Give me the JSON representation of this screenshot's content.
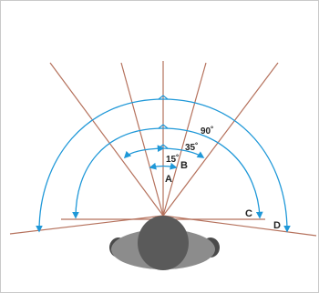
{
  "labels": {
    "deg15": "15˚",
    "deg35": "35˚",
    "deg90": "90˚",
    "a": "A",
    "b": "B",
    "c": "C",
    "d": "D"
  },
  "colors": {
    "ray": "#b5715c",
    "arc": "#1f98d8",
    "head_outer": "#5a5a5a",
    "head_body": "#8c8c8c",
    "head_inner": "#4a4a4a"
  }
}
